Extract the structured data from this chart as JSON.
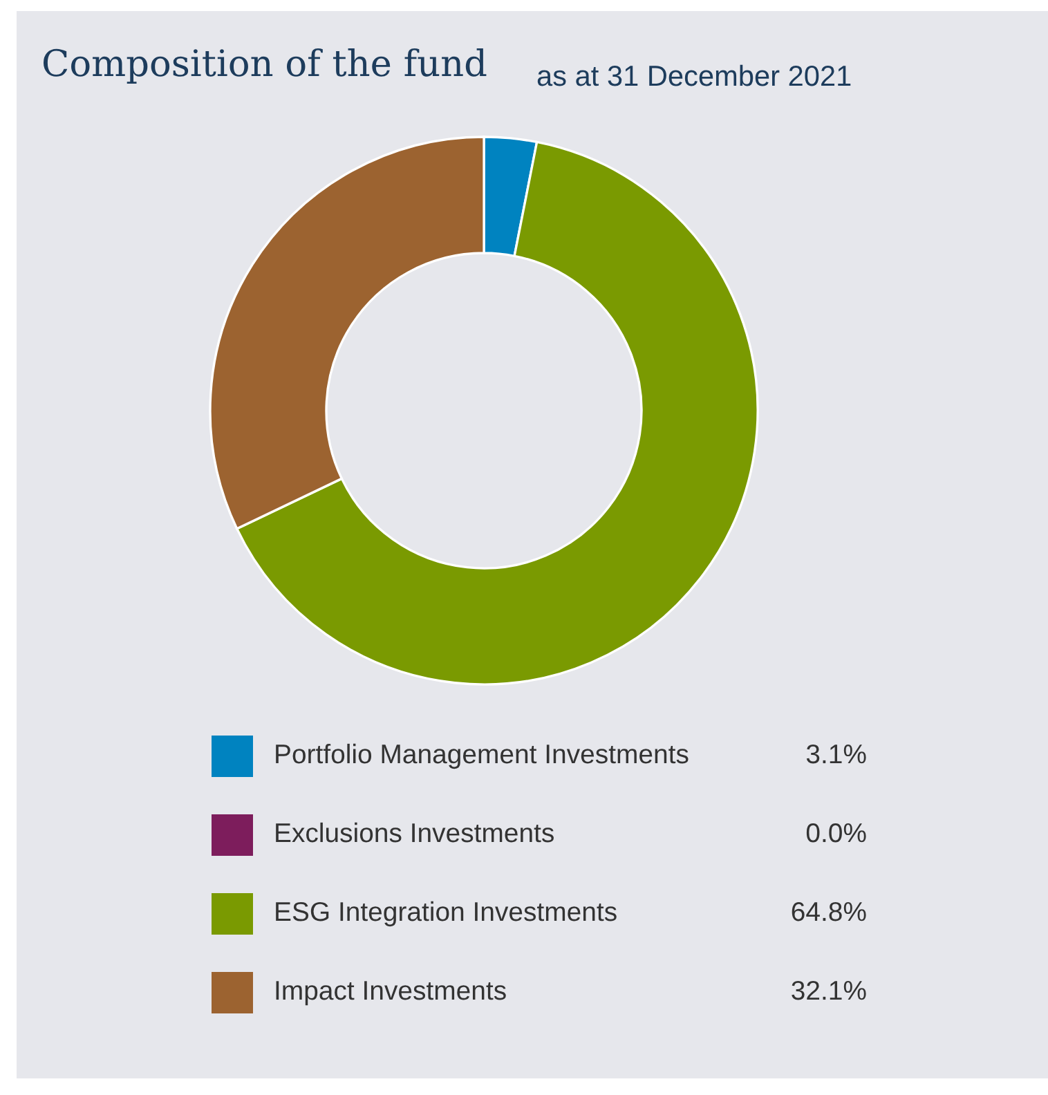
{
  "chart_data": {
    "type": "donut",
    "title": "Composition of the fund",
    "subtitle": "as at 31 December 2021",
    "categories": [
      "Portfolio Management Investments",
      "Exclusions Investments",
      "ESG Integration Investments",
      "Impact Investments"
    ],
    "values": [
      3.1,
      0.0,
      64.8,
      32.1
    ],
    "colors": [
      "#0083c0",
      "#7d1d5c",
      "#7a9a01",
      "#9c6330"
    ],
    "value_labels": [
      "3.1%",
      "0.0%",
      "64.8%",
      "32.1%"
    ],
    "legend": "bottom"
  }
}
